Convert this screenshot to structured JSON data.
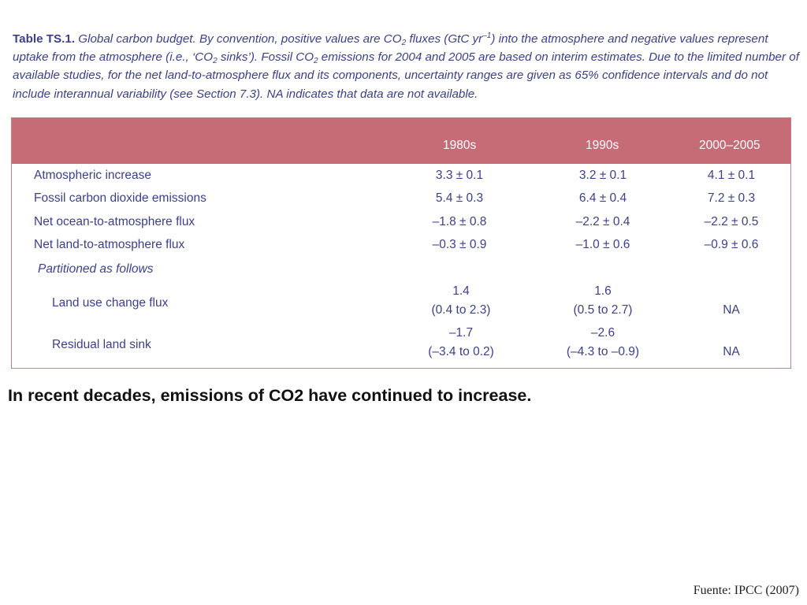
{
  "caption": {
    "label": "Table TS.1.",
    "text1": " Global carbon budget. By convention, positive values are CO",
    "sub1": "2",
    "text2": " fluxes (GtC yr",
    "sup1": "–1",
    "text3": ") into the atmosphere and negative values represent uptake from the atmosphere (i.e., ‘CO",
    "sub2": "2",
    "text4": " sinks’). Fossil CO",
    "sub3": "2",
    "text5": " emissions for 2004 and 2005 are based on interim estimates. Due to the limited number of available studies, for the net land-to-atmosphere flux and its components, uncertainty ranges are given as 65% confidence intervals and do not include interannual variability (see Section 7.3). NA indicates that data are not available."
  },
  "table": {
    "columns": [
      "1980s",
      "1990s",
      "2000–2005"
    ],
    "rows": [
      {
        "label": "Atmospheric increase",
        "values": [
          "3.3 ± 0.1",
          "3.2 ± 0.1",
          "4.1 ± 0.1"
        ]
      },
      {
        "label": "Fossil carbon dioxide emissions",
        "values": [
          "5.4 ± 0.3",
          "6.4 ± 0.4",
          "7.2 ± 0.3"
        ]
      },
      {
        "label": "Net ocean-to-atmosphere flux",
        "values": [
          "–1.8 ± 0.8",
          "–2.2 ± 0.4",
          "–2.2 ± 0.5"
        ]
      },
      {
        "label": "Net land-to-atmosphere flux",
        "values": [
          "–0.3 ± 0.9",
          "–1.0 ± 0.6",
          "–0.9 ± 0.6"
        ]
      }
    ],
    "partition_label": "Partitioned as follows",
    "subrows": [
      {
        "label": "Land use change flux",
        "values": [
          "1.4",
          "1.6",
          ""
        ],
        "ranges": [
          "(0.4 to 2.3)",
          "(0.5 to 2.7)",
          "NA"
        ]
      },
      {
        "label": "Residual land sink",
        "values": [
          "–1.7",
          "–2.6",
          ""
        ],
        "ranges": [
          "(–3.4 to 0.2)",
          "(–4.3 to –0.9)",
          "NA"
        ]
      }
    ]
  },
  "statement": "In recent decades, emissions of CO2 have continued to increase.",
  "source": "Fuente: IPCC (2007)"
}
